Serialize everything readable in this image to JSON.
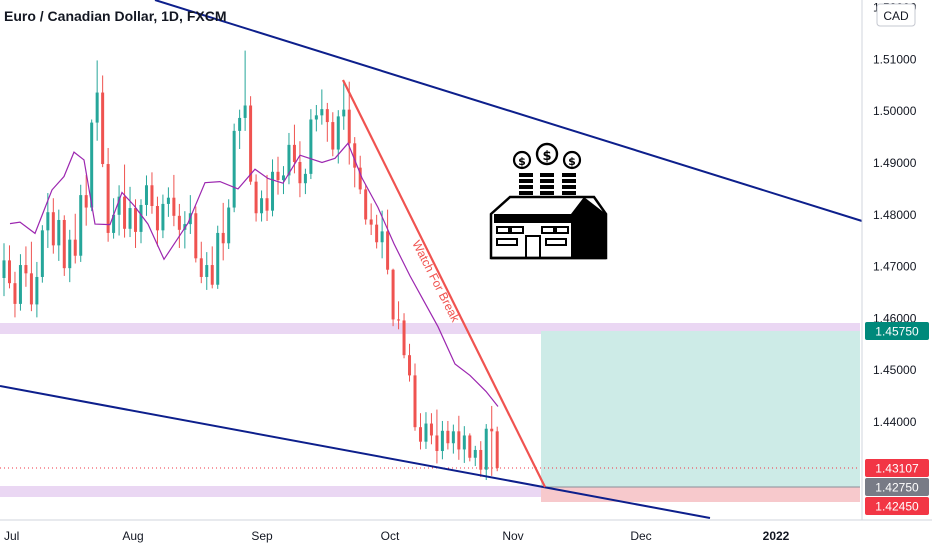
{
  "header": {
    "title": "Euro / Canadian Dollar, 1D, FXCM"
  },
  "currency_badge": "CAD",
  "annotation": "Watch For Break",
  "colors": {
    "up": "#26a69a",
    "down": "#ef5350",
    "ma": "#9c27b0",
    "trendline": "#0d1f8c",
    "resistance_line": "#f05350",
    "zone_band": "#ead7f3",
    "target_zone": "#cdebe7",
    "stop_zone": "#f7c9cc",
    "price_current": "#f23645",
    "price_target": "#00897b",
    "price_entry": "#787b86"
  },
  "chart_data": {
    "type": "candlestick",
    "title": "Euro / Canadian Dollar, 1D, FXCM",
    "xlabel": "",
    "ylabel": "",
    "x_ticks": [
      "Jul",
      "Aug",
      "Sep",
      "Oct",
      "Nov",
      "Dec",
      "2022"
    ],
    "y_ticks": [
      "1.44000",
      "1.45000",
      "1.46000",
      "1.47000",
      "1.48000",
      "1.49000",
      "1.50000",
      "1.51000",
      "1.52000"
    ],
    "ylim": [
      1.4188,
      1.5235
    ],
    "grid": false,
    "price_labels": [
      {
        "value": "1.45750",
        "role": "target"
      },
      {
        "value": "1.43107",
        "role": "current"
      },
      {
        "value": "1.42750",
        "role": "entry"
      },
      {
        "value": "1.42450",
        "role": "stop"
      }
    ],
    "candles": [
      [
        1.4678,
        1.4745,
        1.4643,
        1.4712
      ],
      [
        1.4712,
        1.4741,
        1.4658,
        1.4668
      ],
      [
        1.4668,
        1.469,
        1.4602,
        1.4628
      ],
      [
        1.4628,
        1.4724,
        1.4615,
        1.4703
      ],
      [
        1.4703,
        1.4739,
        1.4661,
        1.4687
      ],
      [
        1.4687,
        1.4748,
        1.4614,
        1.4627
      ],
      [
        1.4627,
        1.4709,
        1.4602,
        1.468
      ],
      [
        1.468,
        1.478,
        1.4669,
        1.477
      ],
      [
        1.477,
        1.4842,
        1.4736,
        1.4805
      ],
      [
        1.4805,
        1.4832,
        1.4725,
        1.4741
      ],
      [
        1.4741,
        1.481,
        1.4711,
        1.479
      ],
      [
        1.479,
        1.4799,
        1.4682,
        1.4697
      ],
      [
        1.4697,
        1.4771,
        1.467,
        1.4752
      ],
      [
        1.4752,
        1.4802,
        1.4706,
        1.4721
      ],
      [
        1.4721,
        1.4858,
        1.4709,
        1.4838
      ],
      [
        1.4838,
        1.4877,
        1.4779,
        1.4814
      ],
      [
        1.4814,
        1.4984,
        1.4807,
        1.4978
      ],
      [
        1.4978,
        1.5098,
        1.4943,
        1.5036
      ],
      [
        1.5036,
        1.5069,
        1.4892,
        1.4898
      ],
      [
        1.4898,
        1.4929,
        1.4748,
        1.4765
      ],
      [
        1.4765,
        1.4832,
        1.4754,
        1.48
      ],
      [
        1.48,
        1.4857,
        1.476,
        1.4835
      ],
      [
        1.4835,
        1.4897,
        1.4756,
        1.4773
      ],
      [
        1.4773,
        1.4854,
        1.4757,
        1.4813
      ],
      [
        1.4813,
        1.483,
        1.4736,
        1.4767
      ],
      [
        1.4767,
        1.483,
        1.4745,
        1.4819
      ],
      [
        1.4819,
        1.4876,
        1.4798,
        1.4857
      ],
      [
        1.4857,
        1.4882,
        1.4802,
        1.4817
      ],
      [
        1.4817,
        1.4835,
        1.4739,
        1.477
      ],
      [
        1.477,
        1.4839,
        1.4755,
        1.4821
      ],
      [
        1.4821,
        1.4853,
        1.4796,
        1.4833
      ],
      [
        1.4833,
        1.4877,
        1.4778,
        1.4798
      ],
      [
        1.4798,
        1.4821,
        1.4736,
        1.4771
      ],
      [
        1.4771,
        1.4807,
        1.4735,
        1.4782
      ],
      [
        1.4782,
        1.4838,
        1.4763,
        1.4803
      ],
      [
        1.4803,
        1.4816,
        1.4708,
        1.4716
      ],
      [
        1.4716,
        1.4748,
        1.4668,
        1.468
      ],
      [
        1.468,
        1.4728,
        1.4655,
        1.4703
      ],
      [
        1.4703,
        1.4739,
        1.4658,
        1.4665
      ],
      [
        1.4665,
        1.4779,
        1.4657,
        1.4765
      ],
      [
        1.4765,
        1.4823,
        1.4712,
        1.4745
      ],
      [
        1.4745,
        1.483,
        1.4734,
        1.4814
      ],
      [
        1.4814,
        1.4976,
        1.4805,
        1.4962
      ],
      [
        1.4962,
        1.5003,
        1.4927,
        1.4987
      ],
      [
        1.4987,
        1.5117,
        1.4962,
        1.5011
      ],
      [
        1.5011,
        1.5029,
        1.4858,
        1.4864
      ],
      [
        1.4864,
        1.4878,
        1.4787,
        1.4803
      ],
      [
        1.4803,
        1.4847,
        1.4787,
        1.4832
      ],
      [
        1.4832,
        1.4877,
        1.4788,
        1.4808
      ],
      [
        1.4808,
        1.4907,
        1.4797,
        1.4883
      ],
      [
        1.4883,
        1.4912,
        1.4839,
        1.4867
      ],
      [
        1.4867,
        1.4894,
        1.484,
        1.4876
      ],
      [
        1.4876,
        1.4958,
        1.4859,
        1.4935
      ],
      [
        1.4935,
        1.4974,
        1.488,
        1.4902
      ],
      [
        1.4902,
        1.4942,
        1.4834,
        1.4861
      ],
      [
        1.4861,
        1.4889,
        1.484,
        1.4879
      ],
      [
        1.4879,
        1.5004,
        1.4869,
        1.4984
      ],
      [
        1.4984,
        1.5012,
        1.4961,
        1.4992
      ],
      [
        1.4992,
        1.5042,
        1.4974,
        1.5004
      ],
      [
        1.5004,
        1.5016,
        1.4941,
        1.4979
      ],
      [
        1.4979,
        1.4998,
        1.4913,
        1.4926
      ],
      [
        1.4926,
        1.5002,
        1.4899,
        1.499
      ],
      [
        1.499,
        1.5059,
        1.4964,
        1.5003
      ],
      [
        1.5003,
        1.5057,
        1.4897,
        1.4938
      ],
      [
        1.4938,
        1.495,
        1.4853,
        1.4891
      ],
      [
        1.4891,
        1.4914,
        1.484,
        1.4849
      ],
      [
        1.4849,
        1.4858,
        1.4781,
        1.4791
      ],
      [
        1.4791,
        1.4822,
        1.4761,
        1.4781
      ],
      [
        1.4781,
        1.48,
        1.4735,
        1.4747
      ],
      [
        1.4747,
        1.4808,
        1.4716,
        1.4768
      ],
      [
        1.4768,
        1.481,
        1.4685,
        1.4694
      ],
      [
        1.4694,
        1.4696,
        1.4585,
        1.4598
      ],
      [
        1.4598,
        1.4633,
        1.4579,
        1.4596
      ],
      [
        1.4596,
        1.461,
        1.4523,
        1.4529
      ],
      [
        1.4529,
        1.4551,
        1.4478,
        1.449
      ],
      [
        1.449,
        1.4513,
        1.4383,
        1.439
      ],
      [
        1.439,
        1.4417,
        1.4347,
        1.4362
      ],
      [
        1.4362,
        1.4419,
        1.4348,
        1.4397
      ],
      [
        1.4397,
        1.4417,
        1.4357,
        1.4374
      ],
      [
        1.4374,
        1.4424,
        1.432,
        1.4344
      ],
      [
        1.4344,
        1.4402,
        1.4328,
        1.4383
      ],
      [
        1.4383,
        1.4402,
        1.4347,
        1.4359
      ],
      [
        1.4359,
        1.4395,
        1.4339,
        1.4382
      ],
      [
        1.4382,
        1.4412,
        1.4327,
        1.4347
      ],
      [
        1.4347,
        1.4392,
        1.4321,
        1.4374
      ],
      [
        1.4374,
        1.4378,
        1.4324,
        1.4331
      ],
      [
        1.4331,
        1.4354,
        1.4315,
        1.4346
      ],
      [
        1.4346,
        1.4363,
        1.4294,
        1.4308
      ],
      [
        1.4308,
        1.4396,
        1.4288,
        1.4387
      ],
      [
        1.4387,
        1.4431,
        1.4296,
        1.4382
      ],
      [
        1.4382,
        1.4391,
        1.4305,
        1.4311
      ]
    ],
    "moving_average": [
      [
        10,
        1.4783
      ],
      [
        20,
        1.4786
      ],
      [
        35,
        1.4764
      ],
      [
        52,
        1.4848
      ],
      [
        64,
        1.4874
      ],
      [
        74,
        1.4921
      ],
      [
        84,
        1.4906
      ],
      [
        95,
        1.4782
      ],
      [
        110,
        1.4781
      ],
      [
        122,
        1.4843
      ],
      [
        134,
        1.4818
      ],
      [
        148,
        1.4782
      ],
      [
        164,
        1.4714
      ],
      [
        176,
        1.4749
      ],
      [
        188,
        1.4784
      ],
      [
        205,
        1.4862
      ],
      [
        220,
        1.4864
      ],
      [
        238,
        1.485
      ],
      [
        255,
        1.4888
      ],
      [
        268,
        1.487
      ],
      [
        283,
        1.4861
      ],
      [
        300,
        1.4915
      ],
      [
        322,
        1.4901
      ],
      [
        335,
        1.4909
      ],
      [
        348,
        1.4938
      ],
      [
        362,
        1.4871
      ],
      [
        378,
        1.4814
      ],
      [
        394,
        1.4744
      ],
      [
        410,
        1.4682
      ],
      [
        424,
        1.4633
      ],
      [
        438,
        1.4584
      ],
      [
        455,
        1.4512
      ],
      [
        470,
        1.449
      ],
      [
        486,
        1.4459
      ],
      [
        498,
        1.443
      ]
    ]
  }
}
